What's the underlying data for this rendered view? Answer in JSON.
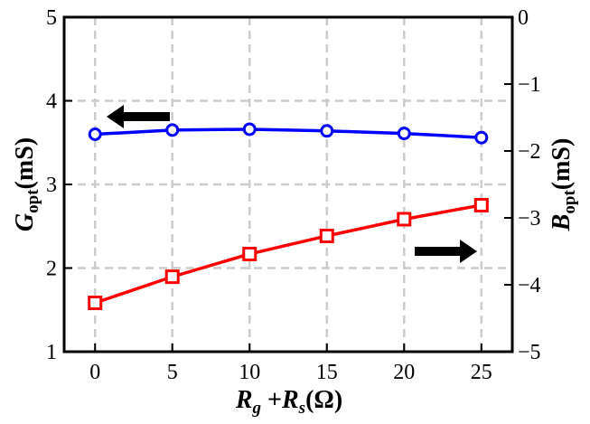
{
  "chart_data": {
    "type": "line",
    "x": [
      0,
      5,
      10,
      15,
      20,
      25
    ],
    "xlim": [
      -2,
      27
    ],
    "xticks": [
      "0",
      "5",
      "10",
      "15",
      "20",
      "25"
    ],
    "grid": true,
    "left_axis": {
      "label_main": "G",
      "label_sub": "opt",
      "label_unit": "(mS)",
      "ylim": [
        1,
        5
      ],
      "ticks": [
        "1",
        "2",
        "3",
        "4",
        "5"
      ]
    },
    "right_axis": {
      "label_main": "B",
      "label_sub": "opt",
      "label_unit": "(mS)",
      "ylim": [
        -5,
        0
      ],
      "ticks": [
        "0",
        "−1",
        "−2",
        "−3",
        "−4",
        "−5"
      ]
    },
    "xlabel": {
      "part1": "R",
      "part1_sub": "g",
      "plus": " +",
      "part2": "R",
      "part2_sub": "s",
      "unit": "(Ω)"
    },
    "series": [
      {
        "axis": "left",
        "marker": "circle",
        "color": "#0000ff",
        "values": [
          3.6,
          3.65,
          3.66,
          3.64,
          3.61,
          3.56
        ]
      },
      {
        "axis": "right",
        "marker": "square",
        "color": "#ff0000",
        "values": [
          -4.27,
          -3.88,
          -3.54,
          -3.27,
          -3.02,
          -2.81
        ]
      }
    ],
    "annotations": [
      {
        "type": "arrow",
        "direction": "left",
        "points_to": "left axis"
      },
      {
        "type": "arrow",
        "direction": "right",
        "points_to": "right axis"
      }
    ]
  }
}
